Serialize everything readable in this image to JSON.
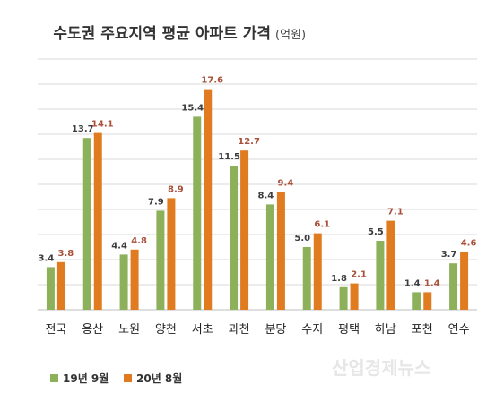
{
  "chart_data": {
    "type": "bar",
    "title": "수도권 주요지역 평균 아파트 가격",
    "unit": "(억원)",
    "categories": [
      "전국",
      "용산",
      "노원",
      "양천",
      "서초",
      "과천",
      "분당",
      "수지",
      "평택",
      "하남",
      "포천",
      "연수"
    ],
    "series": [
      {
        "name": "19년 9월",
        "color": "#8db05a",
        "values": [
          3.4,
          13.7,
          4.4,
          7.9,
          15.4,
          11.5,
          8.4,
          5.0,
          1.8,
          5.5,
          1.4,
          3.7
        ]
      },
      {
        "name": "20년 8월",
        "color": "#e07b1f",
        "values": [
          3.8,
          14.1,
          4.8,
          8.9,
          17.6,
          12.7,
          9.4,
          6.1,
          2.1,
          7.1,
          1.4,
          4.6
        ]
      }
    ],
    "value_labels": [
      [
        "3.4",
        "13.7",
        "4.4",
        "7.9",
        "15.4",
        "11.5",
        "8.4",
        "5.0",
        "1.8",
        "5.5",
        "1.4",
        "3.7"
      ],
      [
        "3.8",
        "14.1",
        "4.8",
        "8.9",
        "17.6",
        "12.7",
        "9.4",
        "6.1",
        "2.1",
        "7.1",
        "1.4",
        "4.6"
      ]
    ],
    "ylim": [
      0,
      20
    ],
    "grid": true,
    "legend_position": "bottom-left"
  },
  "watermark": "산업경제뉴스"
}
